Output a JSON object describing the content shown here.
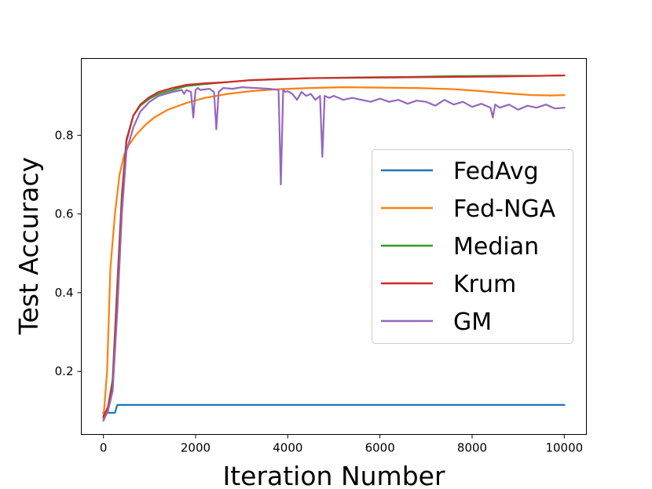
{
  "chart_data": {
    "type": "line",
    "title": "",
    "xlabel": "Iteration Number",
    "ylabel": "Test Accuracy",
    "xlim": [
      -480,
      10480
    ],
    "ylim": [
      0.04,
      0.995
    ],
    "xticks": [
      0,
      2000,
      4000,
      6000,
      8000,
      10000
    ],
    "yticks": [
      0.2,
      0.4,
      0.6,
      0.8
    ],
    "xtick_labels": [
      "0",
      "2000",
      "4000",
      "6000",
      "8000",
      "10000"
    ],
    "ytick_labels": [
      "0.2",
      "0.4",
      "0.6",
      "0.8"
    ],
    "grid": false,
    "legend_position": "center-right",
    "series": [
      {
        "name": "FedAvg",
        "color": "#1f77b4",
        "x": [
          0,
          250,
          300,
          10000
        ],
        "y": [
          0.095,
          0.095,
          0.115,
          0.115
        ]
      },
      {
        "name": "Fed-NGA",
        "color": "#ff7f0e",
        "x": [
          0,
          80,
          150,
          250,
          350,
          450,
          550,
          700,
          900,
          1100,
          1400,
          1800,
          2200,
          2700,
          3200,
          3800,
          4500,
          5200,
          6000,
          6800,
          7600,
          8200,
          8800,
          9300,
          9700,
          10000
        ],
        "y": [
          0.08,
          0.2,
          0.46,
          0.6,
          0.7,
          0.75,
          0.775,
          0.8,
          0.825,
          0.845,
          0.865,
          0.882,
          0.895,
          0.905,
          0.912,
          0.917,
          0.92,
          0.922,
          0.921,
          0.92,
          0.917,
          0.912,
          0.906,
          0.902,
          0.901,
          0.902
        ]
      },
      {
        "name": "Median",
        "color": "#2ca02c",
        "x": [
          0,
          100,
          200,
          300,
          400,
          500,
          650,
          800,
          1000,
          1200,
          1500,
          1800,
          2200,
          2700,
          3200,
          3800,
          4500,
          5500,
          6500,
          7500,
          8500,
          9500,
          10000
        ],
        "y": [
          0.085,
          0.11,
          0.18,
          0.42,
          0.65,
          0.79,
          0.85,
          0.875,
          0.893,
          0.905,
          0.915,
          0.925,
          0.93,
          0.935,
          0.94,
          0.943,
          0.945,
          0.947,
          0.948,
          0.95,
          0.951,
          0.951,
          0.952
        ]
      },
      {
        "name": "Krum",
        "color": "#d62728",
        "x": [
          0,
          100,
          200,
          300,
          400,
          500,
          650,
          800,
          1000,
          1200,
          1500,
          1800,
          2200,
          2700,
          3200,
          3800,
          4500,
          5500,
          6500,
          7500,
          8500,
          9500,
          10000
        ],
        "y": [
          0.085,
          0.11,
          0.17,
          0.4,
          0.64,
          0.785,
          0.85,
          0.878,
          0.897,
          0.91,
          0.92,
          0.928,
          0.932,
          0.935,
          0.94,
          0.942,
          0.945,
          0.946,
          0.947,
          0.948,
          0.949,
          0.951,
          0.952
        ]
      },
      {
        "name": "GM",
        "color": "#9467bd",
        "x": [
          0,
          100,
          200,
          300,
          400,
          500,
          650,
          800,
          1000,
          1200,
          1500,
          1700,
          1750,
          1800,
          1900,
          1950,
          2000,
          2050,
          2100,
          2300,
          2400,
          2450,
          2500,
          2550,
          2600,
          2800,
          3000,
          3300,
          3600,
          3800,
          3850,
          3900,
          3950,
          4000,
          4100,
          4200,
          4300,
          4400,
          4500,
          4600,
          4700,
          4750,
          4800,
          4900,
          5000,
          5200,
          5400,
          5600,
          5800,
          6000,
          6200,
          6400,
          6600,
          6800,
          7000,
          7200,
          7400,
          7600,
          7800,
          8000,
          8200,
          8400,
          8450,
          8500,
          8600,
          8800,
          9000,
          9200,
          9400,
          9600,
          9800,
          10000
        ],
        "y": [
          0.075,
          0.1,
          0.15,
          0.35,
          0.6,
          0.76,
          0.82,
          0.86,
          0.885,
          0.9,
          0.91,
          0.915,
          0.905,
          0.915,
          0.91,
          0.845,
          0.915,
          0.92,
          0.915,
          0.918,
          0.91,
          0.815,
          0.91,
          0.915,
          0.92,
          0.918,
          0.922,
          0.92,
          0.918,
          0.915,
          0.675,
          0.915,
          0.91,
          0.912,
          0.905,
          0.89,
          0.91,
          0.9,
          0.905,
          0.89,
          0.9,
          0.745,
          0.9,
          0.895,
          0.9,
          0.89,
          0.895,
          0.89,
          0.885,
          0.893,
          0.885,
          0.89,
          0.88,
          0.888,
          0.885,
          0.875,
          0.89,
          0.878,
          0.885,
          0.872,
          0.88,
          0.87,
          0.845,
          0.878,
          0.87,
          0.878,
          0.865,
          0.875,
          0.87,
          0.878,
          0.868,
          0.87
        ]
      }
    ]
  }
}
